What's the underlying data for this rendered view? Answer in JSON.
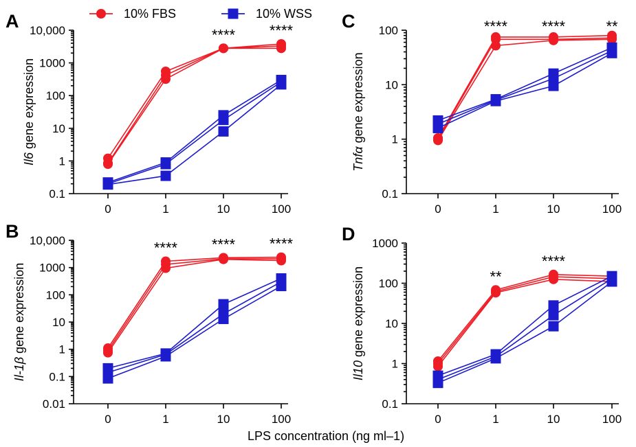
{
  "legend": {
    "fbs": {
      "label": "10% FBS",
      "color": "#ee1c25"
    },
    "wss": {
      "label": "10% WSS",
      "color": "#1c1ccc"
    }
  },
  "xlabel": "LPS concentration (ng ml–1)",
  "chart_data": [
    {
      "panel": "A",
      "type": "line",
      "y_scale": "log",
      "ylim": [
        0.1,
        10000
      ],
      "y_ticks": [
        "0.1",
        "1",
        "10",
        "100",
        "1000",
        "10,000"
      ],
      "categories": [
        "0",
        "1",
        "10",
        "100"
      ],
      "ylabel_gene": "Il6",
      "ylabel_rest": " gene expression",
      "significance": [
        "",
        "",
        "****",
        "****"
      ],
      "series": [
        {
          "group": "fbs",
          "values": [
            1.2,
            550,
            2800,
            3800
          ]
        },
        {
          "group": "fbs",
          "values": [
            0.85,
            420,
            2800,
            3300
          ]
        },
        {
          "group": "fbs",
          "values": [
            0.8,
            320,
            2800,
            2800
          ]
        },
        {
          "group": "wss",
          "values": [
            0.22,
            0.9,
            25,
            300
          ]
        },
        {
          "group": "wss",
          "values": [
            0.2,
            0.8,
            18,
            260
          ]
        },
        {
          "group": "wss",
          "values": [
            0.19,
            0.35,
            8,
            220
          ]
        }
      ]
    },
    {
      "panel": "C",
      "type": "line",
      "y_scale": "log",
      "ylim": [
        0.1,
        100
      ],
      "y_ticks": [
        "0.1",
        "1",
        "10",
        "100"
      ],
      "categories": [
        "0",
        "1",
        "10",
        "100"
      ],
      "ylabel_gene": "Tnfα",
      "ylabel_rest": " gene expression",
      "significance": [
        "",
        "****",
        "****",
        "**"
      ],
      "series": [
        {
          "group": "fbs",
          "values": [
            1.05,
            75,
            75,
            80
          ]
        },
        {
          "group": "fbs",
          "values": [
            1.0,
            68,
            68,
            72
          ]
        },
        {
          "group": "fbs",
          "values": [
            0.95,
            52,
            65,
            68
          ]
        },
        {
          "group": "wss",
          "values": [
            2.2,
            5.4,
            16,
            48
          ]
        },
        {
          "group": "wss",
          "values": [
            1.9,
            5.2,
            13,
            42
          ]
        },
        {
          "group": "wss",
          "values": [
            1.6,
            5.0,
            9.5,
            38
          ]
        }
      ]
    },
    {
      "panel": "B",
      "type": "line",
      "y_scale": "log",
      "ylim": [
        0.01,
        10000
      ],
      "y_ticks": [
        "0.01",
        "0.1",
        "1",
        "10",
        "100",
        "1000",
        "10,000"
      ],
      "categories": [
        "0",
        "1",
        "10",
        "100"
      ],
      "ylabel_gene": "Il-1β",
      "ylabel_rest": " gene expression",
      "significance": [
        "",
        "****",
        "****",
        "****"
      ],
      "series": [
        {
          "group": "fbs",
          "values": [
            1.1,
            1700,
            2300,
            2400
          ]
        },
        {
          "group": "fbs",
          "values": [
            0.9,
            1300,
            2100,
            2100
          ]
        },
        {
          "group": "fbs",
          "values": [
            0.75,
            950,
            2000,
            1800
          ]
        },
        {
          "group": "wss",
          "values": [
            0.2,
            0.7,
            45,
            400
          ]
        },
        {
          "group": "wss",
          "values": [
            0.14,
            0.65,
            20,
            300
          ]
        },
        {
          "group": "wss",
          "values": [
            0.085,
            0.55,
            13,
            210
          ]
        }
      ]
    },
    {
      "panel": "D",
      "type": "line",
      "y_scale": "log",
      "ylim": [
        0.1,
        1000
      ],
      "y_ticks": [
        "0.1",
        "1",
        "10",
        "100",
        "1000"
      ],
      "categories": [
        "0",
        "1",
        "10",
        "100"
      ],
      "ylabel_gene": "Il10",
      "ylabel_rest": " gene expression",
      "significance": [
        "",
        "**",
        "****",
        ""
      ],
      "series": [
        {
          "group": "fbs",
          "values": [
            1.15,
            68,
            165,
            150
          ]
        },
        {
          "group": "fbs",
          "values": [
            1.0,
            62,
            145,
            130
          ]
        },
        {
          "group": "fbs",
          "values": [
            0.85,
            58,
            125,
            110
          ]
        },
        {
          "group": "wss",
          "values": [
            0.5,
            1.7,
            28,
            150
          ]
        },
        {
          "group": "wss",
          "values": [
            0.4,
            1.5,
            16,
            130
          ]
        },
        {
          "group": "wss",
          "values": [
            0.33,
            1.35,
            8.5,
            110
          ]
        }
      ]
    }
  ]
}
